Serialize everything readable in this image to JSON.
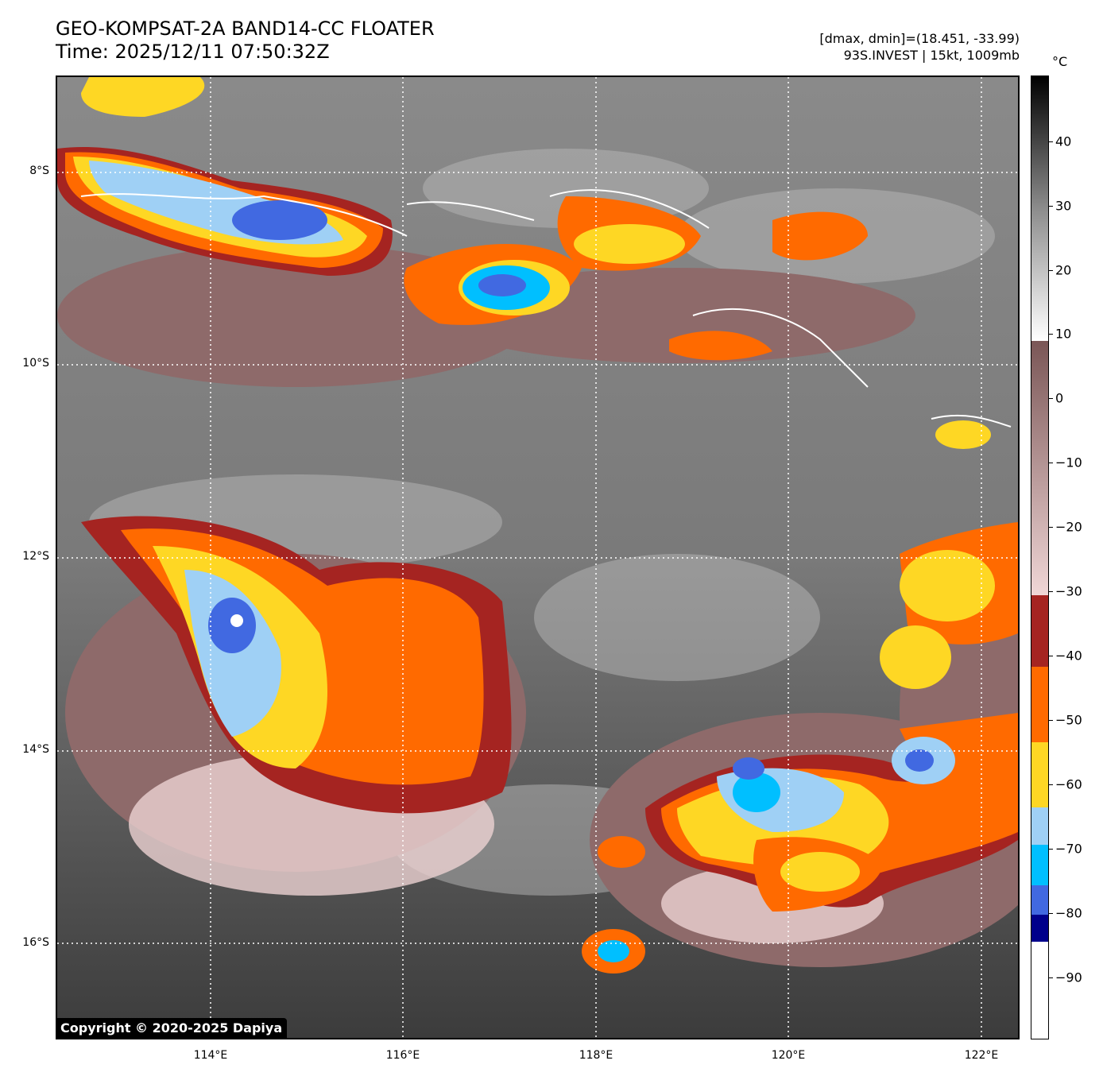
{
  "header": {
    "title_line1": "GEO-KOMPSAT-2A BAND14-CC FLOATER",
    "title_line2": "Time: 2025/12/11 07:50:32Z",
    "range_line": "[dmax, dmin]=(18.451, -33.99)",
    "storm_line": "93S.INVEST | 15kt, 1009mb"
  },
  "map": {
    "lat_labels": [
      "8°S",
      "10°S",
      "12°S",
      "14°S",
      "16°S"
    ],
    "lon_labels": [
      "114°E",
      "116°E",
      "118°E",
      "120°E",
      "122°E"
    ],
    "grid": true,
    "copyright": "Copyright © 2020-2025 Dapiya"
  },
  "colorbar": {
    "unit": "°C",
    "ticks": [
      "40",
      "30",
      "20",
      "10",
      "0",
      "−10",
      "−20",
      "−30",
      "−40",
      "−50",
      "−60",
      "−70",
      "−80",
      "−90"
    ],
    "colors": {
      "warm_top": "#000000",
      "grey_mid": "#8c8c8c",
      "white": "#ffffff",
      "brown": "#7a5656",
      "pink": "#f0d6d6",
      "dark_red": "#a52421",
      "orange": "#ff6a00",
      "yellow": "#fed724",
      "light_blue": "#9fd0f5",
      "sky_blue": "#00bfff",
      "royal_blue": "#4169e1",
      "navy": "#00008b",
      "coldest": "#ffffff"
    }
  }
}
